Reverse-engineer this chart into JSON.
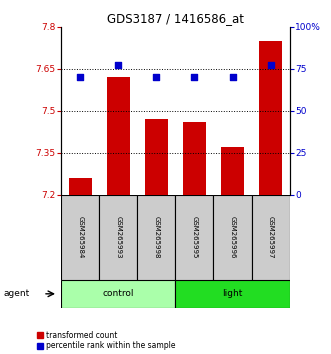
{
  "title": "GDS3187 / 1416586_at",
  "samples": [
    "GSM265984",
    "GSM265993",
    "GSM265998",
    "GSM265995",
    "GSM265996",
    "GSM265997"
  ],
  "red_values": [
    7.26,
    7.62,
    7.47,
    7.46,
    7.37,
    7.75
  ],
  "blue_values": [
    70,
    77,
    70,
    70,
    70,
    77
  ],
  "ylim_left": [
    7.2,
    7.8
  ],
  "ylim_right": [
    0,
    100
  ],
  "yticks_left": [
    7.2,
    7.35,
    7.5,
    7.65,
    7.8
  ],
  "yticks_right": [
    0,
    25,
    50,
    75,
    100
  ],
  "ytick_labels_left": [
    "7.2",
    "7.35",
    "7.5",
    "7.65",
    "7.8"
  ],
  "ytick_labels_right": [
    "0",
    "25",
    "50",
    "75",
    "100%"
  ],
  "hlines": [
    7.35,
    7.5,
    7.65
  ],
  "bar_color": "#cc0000",
  "dot_color": "#0000cc",
  "control_color": "#aaffaa",
  "light_color": "#22dd22",
  "sample_bg_color": "#cccccc",
  "bar_width": 0.6,
  "agent_label": "agent",
  "legend_red": "transformed count",
  "legend_blue": "percentile rank within the sample",
  "bar_bottom": 7.2,
  "dot_size": 18,
  "title_fontsize": 8.5
}
